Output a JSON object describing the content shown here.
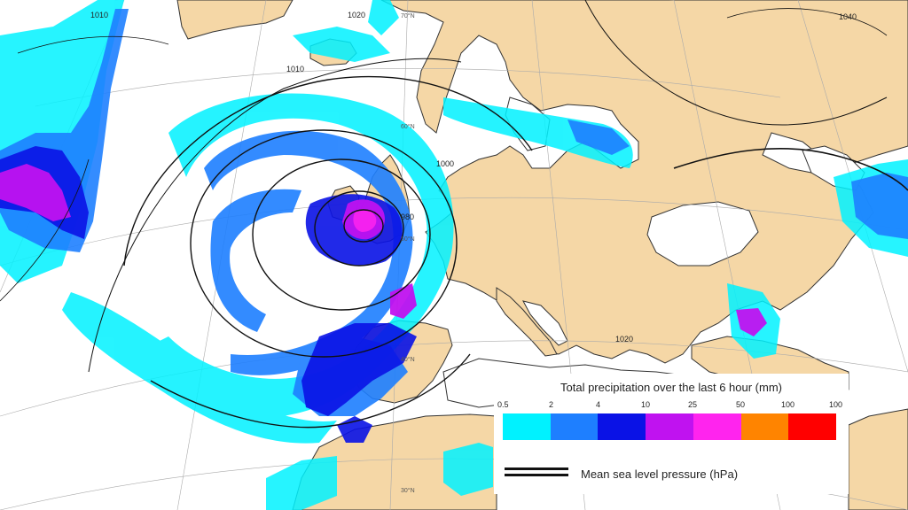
{
  "legend": {
    "title": "Total precipitation over the last 6 hour (mm)",
    "ticks": [
      "0.5",
      "2",
      "4",
      "10",
      "25",
      "50",
      "100",
      "100"
    ],
    "colors": [
      "#00f2ff",
      "#1e7fff",
      "#0a12e6",
      "#c012f0",
      "#ff24ee",
      "#ff8400",
      "#ff0000"
    ],
    "pressure_label": "Mean sea level pressure (hPa)"
  },
  "isobar_labels": [
    "1010",
    "1020",
    "1010",
    "1000",
    "980",
    "1020",
    "1040"
  ],
  "grid_labels": [
    "70°N",
    "60°N",
    "50°N",
    "40°N",
    "30°N"
  ],
  "colors": {
    "land": "#f5d7a6",
    "sea": "#ffffff",
    "coast": "#333333"
  }
}
